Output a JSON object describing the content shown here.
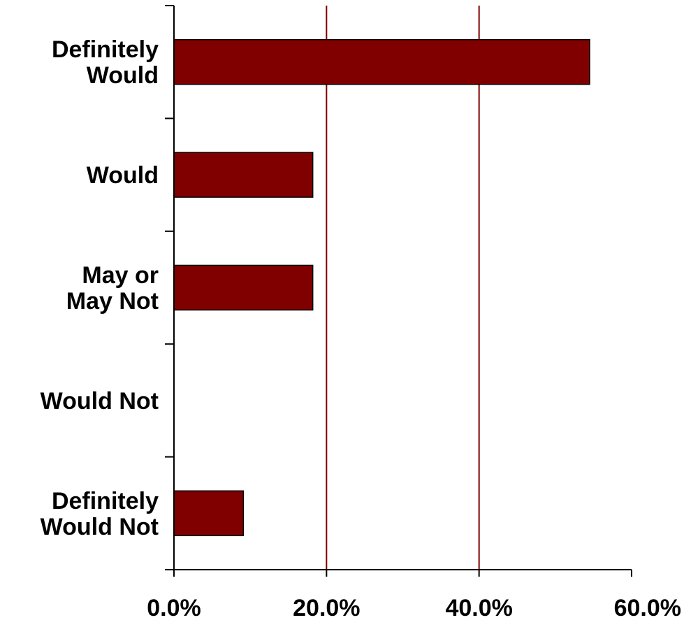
{
  "chart_data": {
    "type": "bar",
    "orientation": "horizontal",
    "categories": [
      [
        "Definitely",
        "Would"
      ],
      [
        "Would"
      ],
      [
        "May or",
        "May Not"
      ],
      [
        "Would Not"
      ],
      [
        "Definitely",
        "Would Not"
      ]
    ],
    "values": [
      54.5,
      18.2,
      18.2,
      0,
      9.1
    ],
    "x_ticks": [
      "0.0%",
      "20.0%",
      "40.0%",
      "60.0%"
    ],
    "xlim": [
      0,
      60
    ],
    "grid": "vertical",
    "colors": {
      "bar_fill": "#800000",
      "bar_stroke": "#000000",
      "gridline": "#800000",
      "axis": "#000000"
    }
  }
}
